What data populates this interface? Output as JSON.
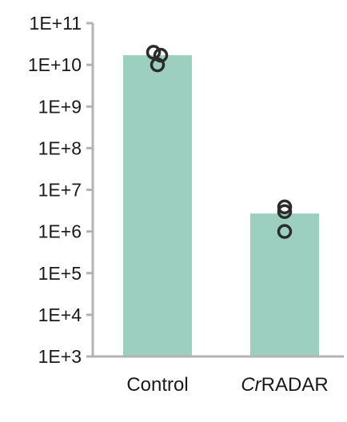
{
  "chart_data": {
    "type": "bar",
    "title": "",
    "xlabel": "",
    "ylabel": "",
    "yscale": "log",
    "ylim": [
      1000,
      100000000000
    ],
    "y_ticks": [
      {
        "value": 1000,
        "label": "1E+3"
      },
      {
        "value": 10000,
        "label": "1E+4"
      },
      {
        "value": 100000,
        "label": "1E+5"
      },
      {
        "value": 1000000,
        "label": "1E+6"
      },
      {
        "value": 10000000,
        "label": "1E+7"
      },
      {
        "value": 100000000,
        "label": "1E+8"
      },
      {
        "value": 1000000000,
        "label": "1E+9"
      },
      {
        "value": 10000000000,
        "label": "1E+10"
      },
      {
        "value": 100000000000,
        "label": "1E+11"
      }
    ],
    "categories": [
      {
        "label_italic": "",
        "label_normal": "Control"
      },
      {
        "label_italic": "Cr",
        "label_normal": "RADAR"
      }
    ],
    "values": [
      17000000000,
      2700000
    ],
    "replicates": [
      [
        20000000000,
        17000000000,
        10000000000
      ],
      [
        3900000,
        3000000,
        1000000
      ]
    ],
    "colors": {
      "bar": "#9ccfc0",
      "point_stroke": "#2b2b2b",
      "axis": "#b3b3b3",
      "text": "#1a1a1a"
    },
    "grid": false,
    "legend": "none"
  }
}
